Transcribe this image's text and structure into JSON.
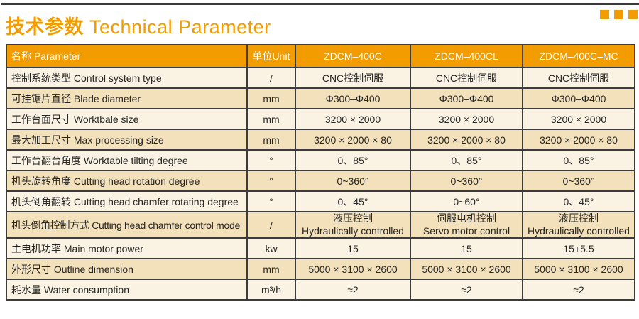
{
  "title": {
    "cn": "技术参数",
    "en": "Technical Parameter"
  },
  "decor": {
    "squares_count": 3
  },
  "colors": {
    "accent_orange": "#f39c00",
    "row_light": "#faf3e3",
    "row_dark": "#f3e1bb",
    "border": "#3c3c3c",
    "header_text": "#ffffff",
    "body_text": "#262626",
    "top_rule": "#3a3a3a"
  },
  "table": {
    "headers": [
      "名称 Parameter",
      "单位Unit",
      "ZDCM–400C",
      "ZDCM–400CL",
      "ZDCM–400C–MC"
    ],
    "rows": [
      {
        "param": "控制系统类型 Control system type",
        "unit": "/",
        "values": [
          "CNC控制伺服",
          "CNC控制伺服",
          "CNC控制伺服"
        ]
      },
      {
        "param": "可挂锯片直径 Blade diameter",
        "unit": "mm",
        "values": [
          "Φ300–Φ400",
          "Φ300–Φ400",
          "Φ300–Φ400"
        ]
      },
      {
        "param": "工作台面尺寸 Worktbale size",
        "unit": "mm",
        "values": [
          "3200 × 2000",
          "3200 × 2000",
          "3200 × 2000"
        ]
      },
      {
        "param": "最大加工尺寸 Max processing size",
        "unit": "mm",
        "values": [
          "3200 × 2000 × 80",
          "3200 × 2000 × 80",
          "3200 × 2000 × 80"
        ]
      },
      {
        "param": "工作台翻台角度 Worktable tilting degree",
        "unit": "°",
        "values": [
          "0、85°",
          "0、85°",
          "0、85°"
        ]
      },
      {
        "param": "机头旋转角度 Cutting head rotation degree",
        "unit": "°",
        "values": [
          "0~360°",
          "0~360°",
          "0~360°"
        ]
      },
      {
        "param": "机头倒角翻转 Cutting head chamfer rotating degree",
        "unit": "°",
        "values": [
          "0、45°",
          "0~60°",
          "0、45°"
        ]
      },
      {
        "param": "机头倒角控制方式 Cutting head chamfer control mode",
        "unit": "/",
        "small": true,
        "param_small": true,
        "values": [
          "液压控制\nHydraulically controlled",
          "伺服电机控制\nServo motor control",
          "液压控制\nHydraulically controlled"
        ]
      },
      {
        "param": "主电机功率 Main motor power",
        "unit": "kw",
        "values": [
          "15",
          "15",
          "15+5.5"
        ]
      },
      {
        "param": "外形尺寸 Outline dimension",
        "unit": "mm",
        "values": [
          "5000 × 3100 × 2600",
          "5000 × 3100 × 2600",
          "5000 × 3100 × 2600"
        ]
      },
      {
        "param": "耗水量 Water consumption",
        "unit": "m³/h",
        "values": [
          "≈2",
          "≈2",
          "≈2"
        ]
      }
    ]
  }
}
